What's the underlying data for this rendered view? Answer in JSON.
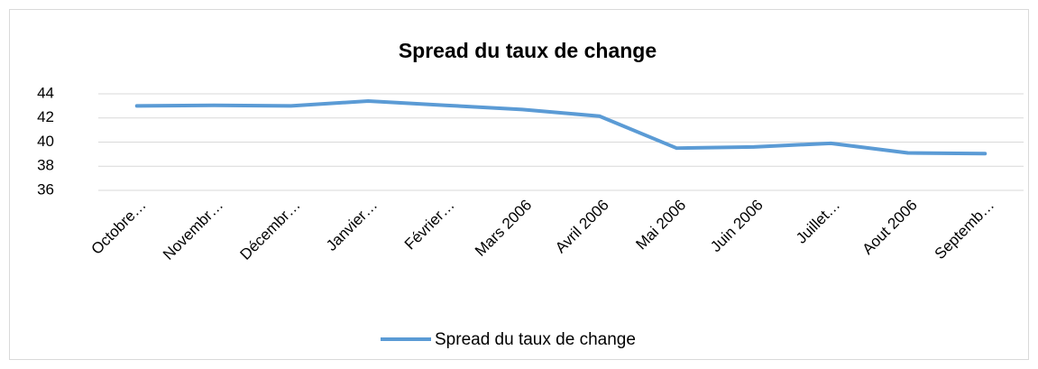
{
  "chart_data": {
    "type": "line",
    "title": "Spread du taux de change",
    "categories": [
      "Octobre…",
      "Novembr…",
      "Décembr…",
      "Janvier…",
      "Février…",
      "Mars 2006",
      "Avril 2006",
      "Mai 2006",
      "Juin 2006",
      "Juillet…",
      "Aout 2006",
      "Septemb…"
    ],
    "series": [
      {
        "name": "Spread du taux de change",
        "color": "#5b9bd5",
        "values": [
          43,
          43.05,
          43,
          43.4,
          43.05,
          42.7,
          42.15,
          39.5,
          39.6,
          39.9,
          39.1,
          39.05
        ]
      }
    ],
    "ylim": [
      36,
      44
    ],
    "yticks": [
      36,
      38,
      40,
      42,
      44
    ],
    "grid": true,
    "legend": "bottom"
  }
}
